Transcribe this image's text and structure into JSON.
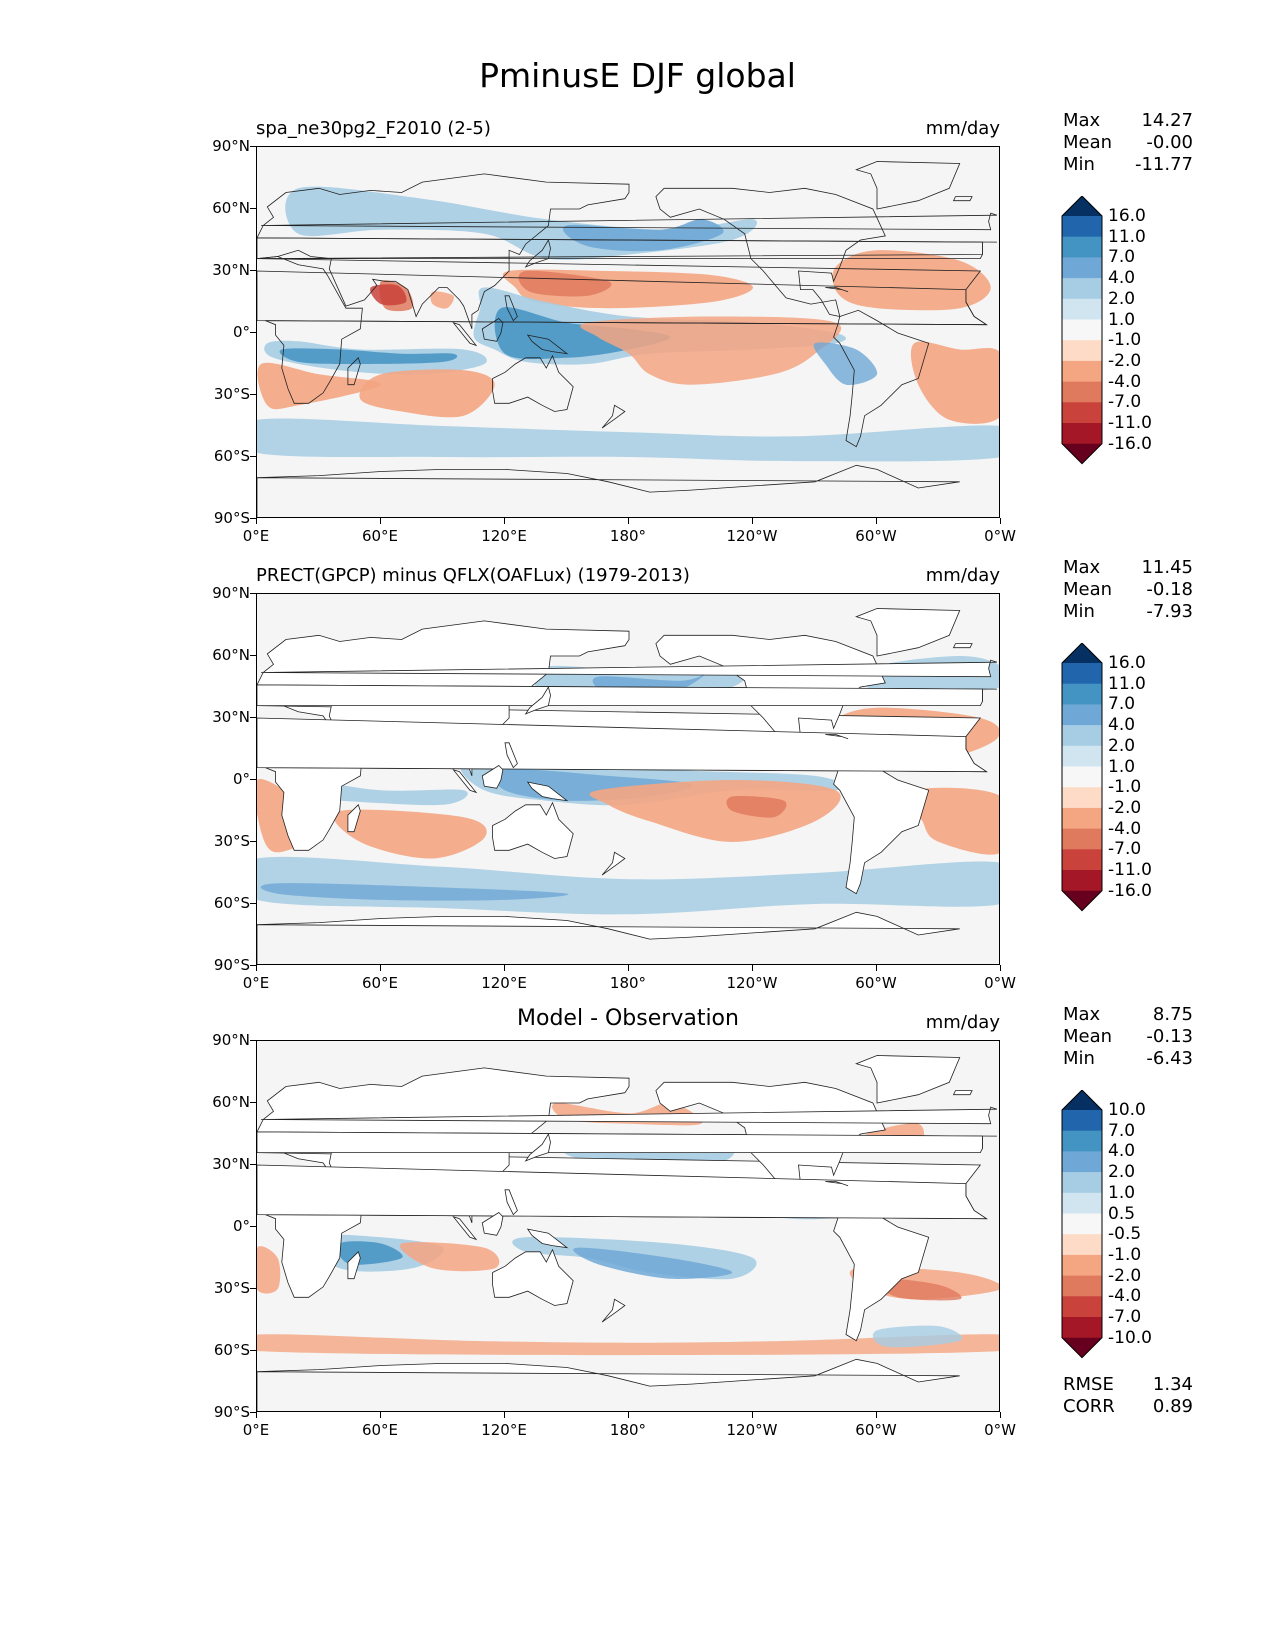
{
  "title": "PminusE DJF global",
  "lat_ticks": [
    "90°N",
    "60°N",
    "30°N",
    "0°",
    "30°S",
    "60°S",
    "90°S"
  ],
  "lon_ticks": [
    "0°E",
    "60°E",
    "120°E",
    "180°",
    "120°W",
    "60°W",
    "0°W"
  ],
  "panels": [
    {
      "label": "spa_ne30pg2_F2010 (2-5)",
      "label_style": "left",
      "units": "mm/day",
      "stats": {
        "max_label": "Max",
        "max": "14.27",
        "mean_label": "Mean",
        "mean": "-0.00",
        "min_label": "Min",
        "min": "-11.77"
      },
      "colorbar_ticks": [
        "16.0",
        "11.0",
        "7.0",
        "4.0",
        "2.0",
        "1.0",
        "-1.0",
        "-2.0",
        "-4.0",
        "-7.0",
        "-11.0",
        "-16.0"
      ],
      "map_type": "model"
    },
    {
      "label": "PRECT(GPCP) minus QFLX(OAFLux) (1979-2013)",
      "label_style": "left",
      "units": "mm/day",
      "stats": {
        "max_label": "Max",
        "max": "11.45",
        "mean_label": "Mean",
        "mean": "-0.18",
        "min_label": "Min",
        "min": "-7.93"
      },
      "colorbar_ticks": [
        "16.0",
        "11.0",
        "7.0",
        "4.0",
        "2.0",
        "1.0",
        "-1.0",
        "-2.0",
        "-4.0",
        "-7.0",
        "-11.0",
        "-16.0"
      ],
      "map_type": "obs"
    },
    {
      "label": "Model - Observation",
      "label_style": "center",
      "units": "mm/day",
      "stats": {
        "max_label": "Max",
        "max": "8.75",
        "mean_label": "Mean",
        "mean": "-0.13",
        "min_label": "Min",
        "min": "-6.43"
      },
      "colorbar_ticks": [
        "10.0",
        "7.0",
        "4.0",
        "2.0",
        "1.0",
        "0.5",
        "-0.5",
        "-1.0",
        "-2.0",
        "-4.0",
        "-7.0",
        "-10.0"
      ],
      "map_type": "diff",
      "error_stats": {
        "rmse_label": "RMSE",
        "rmse": "1.34",
        "corr_label": "CORR",
        "corr": "0.89"
      }
    }
  ],
  "colors": {
    "colorbar": [
      "#053061",
      "#2166ac",
      "#4393c3",
      "#6fa8d6",
      "#a6cde3",
      "#d1e5f0",
      "#f7f7f7",
      "#fddbc7",
      "#f4a582",
      "#e07a5f",
      "#c9423b",
      "#a31726",
      "#67001f"
    ],
    "land_fill": "#ffffff",
    "ocean_bg": "#f5f5f5",
    "coastline": "#222222"
  }
}
